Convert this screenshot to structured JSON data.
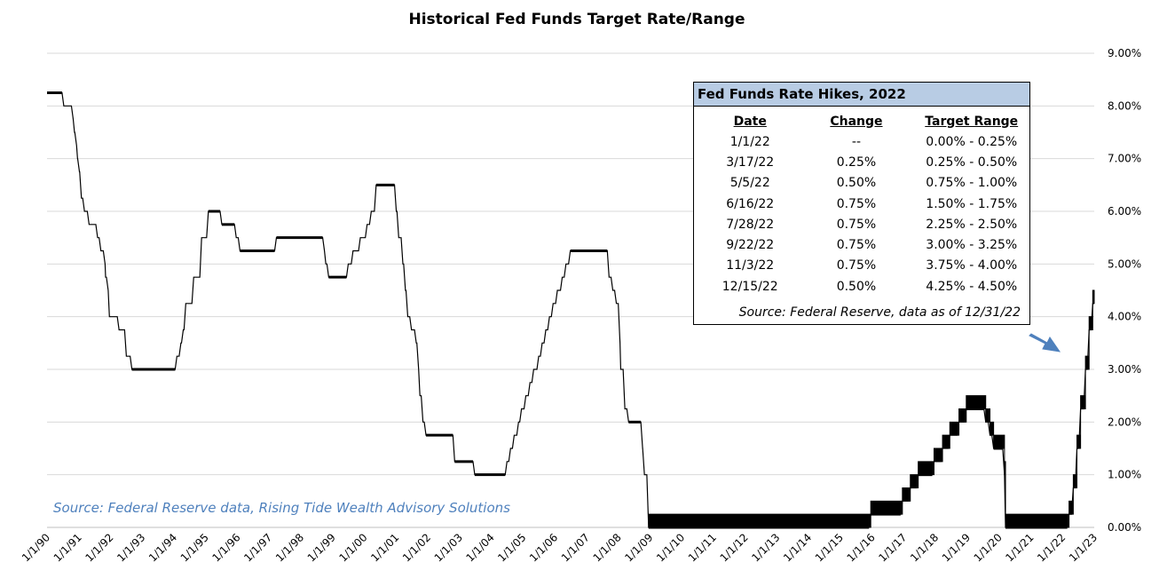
{
  "chart_data": {
    "type": "line",
    "title": "Historical Fed Funds Target Rate/Range",
    "xlabel": "",
    "ylabel": "",
    "ylim": [
      0,
      9
    ],
    "xlim": [
      "1990-01-01",
      "2023-01-01"
    ],
    "grid": "horizontal",
    "y_ticks": [
      "0.00%",
      "1.00%",
      "2.00%",
      "3.00%",
      "4.00%",
      "5.00%",
      "6.00%",
      "7.00%",
      "8.00%",
      "9.00%"
    ],
    "x_ticks": [
      "1/1/90",
      "1/1/91",
      "1/1/92",
      "1/1/93",
      "1/1/94",
      "1/1/95",
      "1/1/96",
      "1/1/97",
      "1/1/98",
      "1/1/99",
      "1/1/00",
      "1/1/01",
      "1/1/02",
      "1/1/03",
      "1/1/04",
      "1/1/05",
      "1/1/06",
      "1/1/07",
      "1/1/08",
      "1/1/09",
      "1/1/10",
      "1/1/11",
      "1/1/12",
      "1/1/13",
      "1/1/14",
      "1/1/15",
      "1/1/16",
      "1/1/17",
      "1/1/18",
      "1/1/19",
      "1/1/20",
      "1/1/21",
      "1/1/22",
      "1/1/23"
    ],
    "series": [
      {
        "lower": [
          [
            "1990-01-01",
            8.25
          ],
          [
            "1990-07-13",
            8.0
          ],
          [
            "1990-10-29",
            7.75
          ],
          [
            "1990-11-13",
            7.5
          ],
          [
            "1990-12-07",
            7.25
          ],
          [
            "1990-12-18",
            7.0
          ],
          [
            "1991-01-09",
            6.75
          ],
          [
            "1991-02-01",
            6.25
          ],
          [
            "1991-03-08",
            6.0
          ],
          [
            "1991-04-30",
            5.75
          ],
          [
            "1991-08-06",
            5.5
          ],
          [
            "1991-09-13",
            5.25
          ],
          [
            "1991-10-31",
            5.0
          ],
          [
            "1991-11-06",
            4.75
          ],
          [
            "1991-12-06",
            4.5
          ],
          [
            "1991-12-20",
            4.0
          ],
          [
            "1992-04-09",
            3.75
          ],
          [
            "1992-07-02",
            3.25
          ],
          [
            "1992-09-04",
            3.0
          ],
          [
            "1994-02-04",
            3.25
          ],
          [
            "1994-03-22",
            3.5
          ],
          [
            "1994-04-18",
            3.75
          ],
          [
            "1994-05-17",
            4.25
          ],
          [
            "1994-08-16",
            4.75
          ],
          [
            "1994-11-15",
            5.5
          ],
          [
            "1995-02-01",
            6.0
          ],
          [
            "1995-07-06",
            5.75
          ],
          [
            "1995-12-19",
            5.5
          ],
          [
            "1996-01-31",
            5.25
          ],
          [
            "1997-03-25",
            5.5
          ],
          [
            "1998-09-29",
            5.25
          ],
          [
            "1998-10-15",
            5.0
          ],
          [
            "1998-11-17",
            4.75
          ],
          [
            "1999-06-30",
            5.0
          ],
          [
            "1999-08-24",
            5.25
          ],
          [
            "1999-11-16",
            5.5
          ],
          [
            "2000-02-02",
            5.75
          ],
          [
            "2000-03-21",
            6.0
          ],
          [
            "2000-05-16",
            6.5
          ],
          [
            "2001-01-03",
            6.0
          ],
          [
            "2001-01-31",
            5.5
          ],
          [
            "2001-03-20",
            5.0
          ],
          [
            "2001-04-18",
            4.5
          ],
          [
            "2001-05-15",
            4.0
          ],
          [
            "2001-06-27",
            3.75
          ],
          [
            "2001-08-21",
            3.5
          ],
          [
            "2001-09-17",
            3.0
          ],
          [
            "2001-10-02",
            2.5
          ],
          [
            "2001-11-06",
            2.0
          ],
          [
            "2001-12-11",
            1.75
          ],
          [
            "2002-11-06",
            1.25
          ],
          [
            "2003-06-25",
            1.0
          ],
          [
            "2004-06-30",
            1.25
          ],
          [
            "2004-08-10",
            1.5
          ],
          [
            "2004-09-21",
            1.75
          ],
          [
            "2004-11-10",
            2.0
          ],
          [
            "2004-12-14",
            2.25
          ],
          [
            "2005-02-02",
            2.5
          ],
          [
            "2005-03-22",
            2.75
          ],
          [
            "2005-05-03",
            3.0
          ],
          [
            "2005-06-30",
            3.25
          ],
          [
            "2005-08-09",
            3.5
          ],
          [
            "2005-09-20",
            3.75
          ],
          [
            "2005-11-01",
            4.0
          ],
          [
            "2005-12-13",
            4.25
          ],
          [
            "2006-01-31",
            4.5
          ],
          [
            "2006-03-28",
            4.75
          ],
          [
            "2006-05-10",
            5.0
          ],
          [
            "2006-06-29",
            5.25
          ],
          [
            "2007-09-18",
            4.75
          ],
          [
            "2007-10-31",
            4.5
          ],
          [
            "2007-12-11",
            4.25
          ],
          [
            "2008-01-22",
            3.5
          ],
          [
            "2008-01-30",
            3.0
          ],
          [
            "2008-03-18",
            2.25
          ],
          [
            "2008-04-30",
            2.0
          ],
          [
            "2008-10-08",
            1.5
          ],
          [
            "2008-10-29",
            1.0
          ],
          [
            "2008-12-16",
            0.0
          ],
          [
            "2015-12-17",
            0.25
          ],
          [
            "2016-12-15",
            0.5
          ],
          [
            "2017-03-16",
            0.75
          ],
          [
            "2017-06-15",
            1.0
          ],
          [
            "2017-12-14",
            1.25
          ],
          [
            "2018-03-22",
            1.5
          ],
          [
            "2018-06-14",
            1.75
          ],
          [
            "2018-09-27",
            2.0
          ],
          [
            "2018-12-20",
            2.25
          ],
          [
            "2019-08-01",
            2.0
          ],
          [
            "2019-09-19",
            1.75
          ],
          [
            "2019-10-31",
            1.5
          ],
          [
            "2020-03-04",
            1.0
          ],
          [
            "2020-03-16",
            0.0
          ],
          [
            "2022-03-17",
            0.25
          ],
          [
            "2022-05-05",
            0.75
          ],
          [
            "2022-06-16",
            1.5
          ],
          [
            "2022-07-28",
            2.25
          ],
          [
            "2022-09-22",
            3.0
          ],
          [
            "2022-11-03",
            3.75
          ],
          [
            "2022-12-15",
            4.25
          ],
          [
            "2023-01-01",
            4.25
          ]
        ],
        "upper": [
          [
            "2008-12-16",
            0.25
          ],
          [
            "2015-12-17",
            0.5
          ],
          [
            "2016-12-15",
            0.75
          ],
          [
            "2017-03-16",
            1.0
          ],
          [
            "2017-06-15",
            1.25
          ],
          [
            "2017-12-14",
            1.5
          ],
          [
            "2018-03-22",
            1.75
          ],
          [
            "2018-06-14",
            2.0
          ],
          [
            "2018-09-27",
            2.25
          ],
          [
            "2018-12-20",
            2.5
          ],
          [
            "2019-08-01",
            2.25
          ],
          [
            "2019-09-19",
            2.0
          ],
          [
            "2019-10-31",
            1.75
          ],
          [
            "2020-03-04",
            1.25
          ],
          [
            "2020-03-16",
            0.25
          ],
          [
            "2022-03-17",
            0.5
          ],
          [
            "2022-05-05",
            1.0
          ],
          [
            "2022-06-16",
            1.75
          ],
          [
            "2022-07-28",
            2.5
          ],
          [
            "2022-09-22",
            3.25
          ],
          [
            "2022-11-03",
            4.0
          ],
          [
            "2022-12-15",
            4.5
          ],
          [
            "2023-01-01",
            4.5
          ]
        ]
      }
    ]
  },
  "source_note": "Source: Federal Reserve data, Rising Tide Wealth Advisory Solutions",
  "hikes_table": {
    "title": "Fed Funds Rate Hikes, 2022",
    "headers": [
      "Date",
      "Change",
      "Target Range"
    ],
    "rows": [
      [
        "1/1/22",
        "--",
        "0.00% - 0.25%"
      ],
      [
        "3/17/22",
        "0.25%",
        "0.25% - 0.50%"
      ],
      [
        "5/5/22",
        "0.50%",
        "0.75% - 1.00%"
      ],
      [
        "6/16/22",
        "0.75%",
        "1.50% - 1.75%"
      ],
      [
        "7/28/22",
        "0.75%",
        "2.25% - 2.50%"
      ],
      [
        "9/22/22",
        "0.75%",
        "3.00% - 3.25%"
      ],
      [
        "11/3/22",
        "0.75%",
        "3.75% - 4.00%"
      ],
      [
        "12/15/22",
        "0.50%",
        "4.25% - 4.50%"
      ]
    ],
    "source": "Source: Federal Reserve, data as of 12/31/22"
  },
  "colors": {
    "line": "#000000",
    "grid": "#d9d9d9",
    "arrow": "#4f81bd",
    "table_header": "#b8cce4",
    "source_note": "#4f81bd"
  }
}
